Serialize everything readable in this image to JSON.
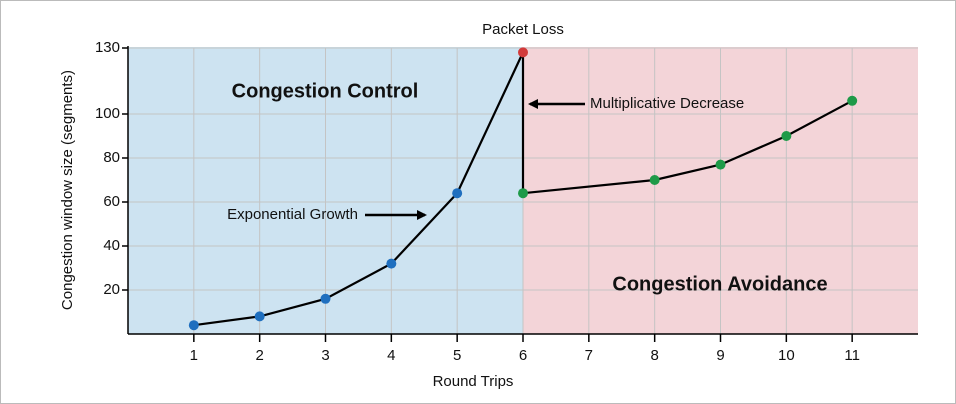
{
  "chart_data": {
    "type": "line",
    "x": [
      1,
      2,
      3,
      4,
      5,
      6,
      6,
      8,
      9,
      10,
      11
    ],
    "values": [
      4,
      8,
      16,
      32,
      64,
      128,
      64,
      70,
      77,
      90,
      106
    ],
    "point_colors": [
      "#1f6fbf",
      "#1f6fbf",
      "#1f6fbf",
      "#1f6fbf",
      "#1f6fbf",
      "#d23a3a",
      "#1e9a48",
      "#1e9a48",
      "#1e9a48",
      "#1e9a48",
      "#1e9a48"
    ],
    "line_color": "#000000",
    "xlim": [
      0,
      12
    ],
    "xticks": [
      1,
      2,
      3,
      4,
      5,
      6,
      7,
      8,
      9,
      10,
      11
    ],
    "ylim": [
      0,
      130
    ],
    "yticks": [
      20,
      40,
      60,
      80,
      100,
      130
    ],
    "grid": true,
    "xlabel": "Round Trips",
    "ylabel": "Congestion window size (segments)",
    "regions": [
      {
        "label": "Congestion Control",
        "from": 0,
        "to": 6,
        "color": "#cde3f1"
      },
      {
        "label": "Congestion Avoidance",
        "from": 6,
        "to": 12,
        "color": "#f3d4d8"
      }
    ],
    "annotations": [
      "Packet Loss",
      "Multiplicative Decrease",
      "Exponential Growth"
    ]
  }
}
